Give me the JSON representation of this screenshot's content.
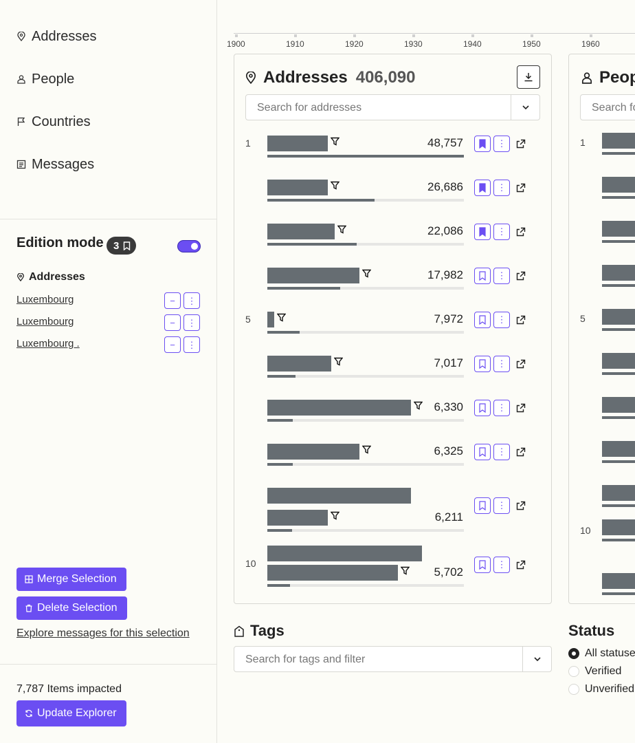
{
  "sidebar": {
    "nav": [
      {
        "label": "Addresses",
        "icon": "location-pin-icon"
      },
      {
        "label": "People",
        "icon": "person-icon"
      },
      {
        "label": "Countries",
        "icon": "flag-icon"
      },
      {
        "label": "Messages",
        "icon": "document-icon"
      }
    ],
    "edition": {
      "title": "Edition mode",
      "badge_count": "3",
      "toggle_on": true,
      "selection_heading": "Addresses",
      "items": [
        "Luxembourg",
        "Luxembourg",
        "Luxembourg ."
      ],
      "item_actions": [
        "−",
        "⋮"
      ]
    },
    "merge_label": "Merge Selection",
    "delete_label": "Delete Selection",
    "explore_label": "Explore messages for this selection",
    "impacted_label": "7,787 Items impacted",
    "update_label": "Update Explorer"
  },
  "timeline": {
    "ticks": [
      "1900",
      "1910",
      "1920",
      "1930",
      "1940",
      "1950",
      "1960"
    ]
  },
  "addresses_card": {
    "title": "Addresses",
    "count": "406,090",
    "search_placeholder": "Search for addresses",
    "rows": [
      {
        "rank": "1",
        "value": "48,757",
        "bookmarked": true,
        "fraction": 1.0
      },
      {
        "rank": "",
        "value": "26,686",
        "bookmarked": true,
        "fraction": 0.547
      },
      {
        "rank": "",
        "value": "22,086",
        "bookmarked": true,
        "fraction": 0.453
      },
      {
        "rank": "",
        "value": "17,982",
        "bookmarked": false,
        "fraction": 0.369
      },
      {
        "rank": "5",
        "value": "7,972",
        "bookmarked": false,
        "fraction": 0.164
      },
      {
        "rank": "",
        "value": "7,017",
        "bookmarked": false,
        "fraction": 0.144
      },
      {
        "rank": "",
        "value": "6,330",
        "bookmarked": false,
        "fraction": 0.13
      },
      {
        "rank": "",
        "value": "6,325",
        "bookmarked": false,
        "fraction": 0.13
      },
      {
        "rank": "",
        "value": "6,211",
        "bookmarked": false,
        "fraction": 0.127
      },
      {
        "rank": "10",
        "value": "5,702",
        "bookmarked": false,
        "fraction": 0.117
      }
    ]
  },
  "people_card": {
    "title": "Peop",
    "search_placeholder": "Search fo",
    "ranks": [
      "1",
      "",
      "",
      "",
      "5",
      "",
      "",
      "",
      "",
      "10",
      ""
    ]
  },
  "tags": {
    "title": "Tags",
    "search_placeholder": "Search for tags and filter"
  },
  "status": {
    "title": "Status",
    "options": [
      {
        "label": "All statuses",
        "selected": true
      },
      {
        "label": "Verified",
        "selected": false
      },
      {
        "label": "Unverified",
        "selected": false
      }
    ]
  },
  "colors": {
    "accent": "#6b4ef2",
    "bar": "#666d72",
    "background": "#fcfcf7"
  }
}
